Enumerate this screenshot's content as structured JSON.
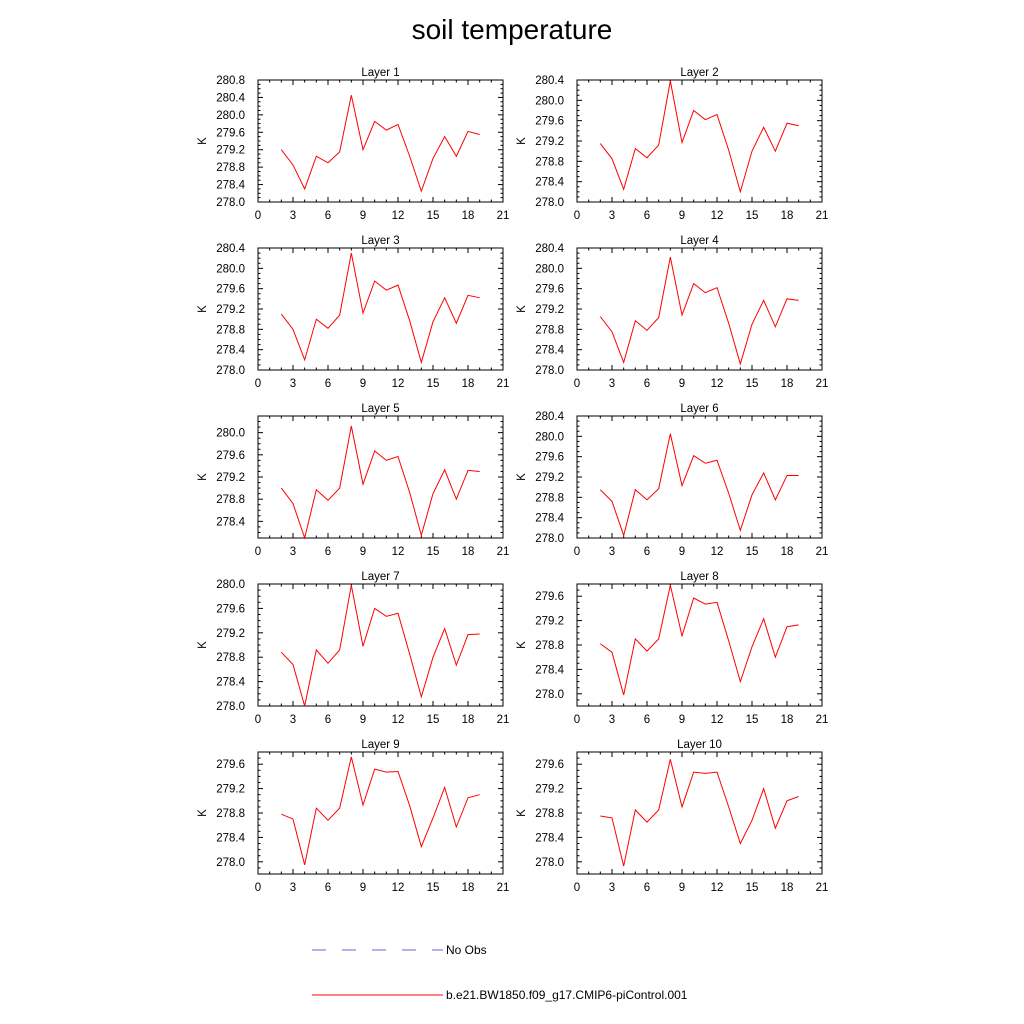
{
  "title": "soil temperature",
  "colors": {
    "model": "#ff0000",
    "obs": "#6666cc",
    "axis": "#000000"
  },
  "chart_data": {
    "type": "line",
    "x": [
      2,
      3,
      4,
      5,
      6,
      7,
      8,
      9,
      10,
      11,
      12,
      13,
      14,
      15,
      16,
      17,
      18,
      19
    ],
    "xlim": [
      0,
      21
    ],
    "xticks": [
      0,
      3,
      6,
      9,
      12,
      15,
      18,
      21
    ],
    "ylabel": "K",
    "legend": [
      {
        "name": "No Obs",
        "style": "dashed"
      },
      {
        "name": "b.e21.BW1850.f09_g17.CMIP6-piControl.001",
        "style": "solid"
      }
    ],
    "panels": [
      {
        "title": "Layer 1",
        "ylim": [
          278.0,
          280.8
        ],
        "yticks": [
          278.0,
          278.4,
          278.8,
          279.2,
          279.6,
          280.0,
          280.4,
          280.8
        ],
        "values": [
          279.2,
          278.85,
          278.3,
          279.05,
          278.9,
          279.15,
          280.45,
          279.2,
          279.85,
          279.65,
          279.78,
          279.05,
          278.25,
          279.0,
          279.5,
          279.05,
          279.62,
          279.55
        ]
      },
      {
        "title": "Layer 2",
        "ylim": [
          278.0,
          280.4
        ],
        "yticks": [
          278.0,
          278.4,
          278.8,
          279.2,
          279.6,
          280.0,
          280.4
        ],
        "values": [
          279.15,
          278.85,
          278.25,
          279.05,
          278.87,
          279.12,
          280.38,
          279.17,
          279.8,
          279.62,
          279.72,
          279.02,
          278.2,
          279.0,
          279.47,
          279.0,
          279.55,
          279.5
        ]
      },
      {
        "title": "Layer 3",
        "ylim": [
          278.0,
          280.4
        ],
        "yticks": [
          278.0,
          278.4,
          278.8,
          279.2,
          279.6,
          280.0,
          280.4
        ],
        "values": [
          279.1,
          278.8,
          278.2,
          279.0,
          278.82,
          279.08,
          280.3,
          279.12,
          279.75,
          279.57,
          279.67,
          278.97,
          278.15,
          278.95,
          279.42,
          278.92,
          279.47,
          279.42
        ]
      },
      {
        "title": "Layer 4",
        "ylim": [
          278.0,
          280.4
        ],
        "yticks": [
          278.0,
          278.4,
          278.8,
          279.2,
          279.6,
          280.0,
          280.4
        ],
        "values": [
          279.05,
          278.75,
          278.15,
          278.97,
          278.78,
          279.03,
          280.22,
          279.08,
          279.7,
          279.52,
          279.62,
          278.92,
          278.12,
          278.9,
          279.37,
          278.85,
          279.4,
          279.37
        ]
      },
      {
        "title": "Layer 5",
        "ylim": [
          278.1,
          280.3
        ],
        "yticks": [
          278.4,
          278.8,
          279.2,
          279.6,
          280.0
        ],
        "values": [
          279.0,
          278.72,
          278.1,
          278.97,
          278.78,
          279.0,
          280.12,
          279.07,
          279.67,
          279.5,
          279.57,
          278.92,
          278.15,
          278.9,
          279.33,
          278.8,
          279.32,
          279.3
        ]
      },
      {
        "title": "Layer 6",
        "ylim": [
          278.0,
          280.4
        ],
        "yticks": [
          278.0,
          278.4,
          278.8,
          279.2,
          279.6,
          280.0,
          280.4
        ],
        "values": [
          278.95,
          278.72,
          278.05,
          278.95,
          278.75,
          278.97,
          280.05,
          279.03,
          279.62,
          279.47,
          279.53,
          278.88,
          278.15,
          278.85,
          279.28,
          278.75,
          279.23,
          279.23
        ]
      },
      {
        "title": "Layer 7",
        "ylim": [
          278.0,
          280.0
        ],
        "yticks": [
          278.0,
          278.4,
          278.8,
          279.2,
          279.6,
          280.0
        ],
        "values": [
          278.88,
          278.68,
          278.0,
          278.92,
          278.7,
          278.92,
          279.98,
          278.98,
          279.6,
          279.47,
          279.52,
          278.85,
          278.15,
          278.8,
          279.27,
          278.67,
          279.17,
          279.18
        ]
      },
      {
        "title": "Layer 8",
        "ylim": [
          277.8,
          279.8
        ],
        "yticks": [
          278.0,
          278.4,
          278.8,
          279.2,
          279.6
        ],
        "values": [
          278.82,
          278.68,
          277.98,
          278.9,
          278.7,
          278.9,
          279.78,
          278.95,
          279.57,
          279.47,
          279.5,
          278.87,
          278.2,
          278.77,
          279.23,
          278.6,
          279.1,
          279.13
        ]
      },
      {
        "title": "Layer 9",
        "ylim": [
          277.8,
          279.8
        ],
        "yticks": [
          278.0,
          278.4,
          278.8,
          279.2,
          279.6
        ],
        "values": [
          278.78,
          278.7,
          277.95,
          278.88,
          278.68,
          278.88,
          279.72,
          278.93,
          279.52,
          279.47,
          279.48,
          278.92,
          278.25,
          278.72,
          279.22,
          278.57,
          279.05,
          279.1
        ]
      },
      {
        "title": "Layer 10",
        "ylim": [
          277.8,
          279.8
        ],
        "yticks": [
          278.0,
          278.4,
          278.8,
          279.2,
          279.6
        ],
        "values": [
          278.75,
          278.72,
          277.93,
          278.85,
          278.65,
          278.85,
          279.68,
          278.9,
          279.47,
          279.45,
          279.47,
          278.9,
          278.3,
          278.68,
          279.2,
          278.55,
          279.0,
          279.07
        ]
      }
    ]
  }
}
